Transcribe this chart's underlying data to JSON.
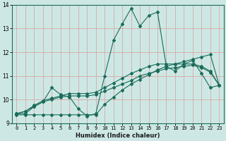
{
  "title": "",
  "xlabel": "Humidex (Indice chaleur)",
  "ylabel": "",
  "xlim": [
    -0.5,
    23.5
  ],
  "ylim": [
    9,
    14
  ],
  "yticks": [
    9,
    10,
    11,
    12,
    13,
    14
  ],
  "xticks": [
    0,
    1,
    2,
    3,
    4,
    5,
    6,
    7,
    8,
    9,
    10,
    11,
    12,
    13,
    14,
    15,
    16,
    17,
    18,
    19,
    20,
    21,
    22,
    23
  ],
  "background_color": "#cde8e4",
  "grid_color": "#d8a8a8",
  "line_color": "#1a6b5a",
  "figsize": [
    3.2,
    2.0
  ],
  "dpi": 100,
  "series": {
    "line1": [
      9.4,
      9.4,
      9.7,
      9.9,
      10.5,
      10.2,
      10.1,
      9.6,
      9.3,
      9.4,
      11.0,
      12.5,
      13.2,
      13.85,
      13.1,
      13.55,
      13.7,
      11.4,
      11.2,
      11.5,
      11.65,
      11.1,
      10.5,
      10.6
    ],
    "line2": [
      9.35,
      9.35,
      9.35,
      9.35,
      9.35,
      9.35,
      9.35,
      9.35,
      9.35,
      9.35,
      9.8,
      10.1,
      10.4,
      10.65,
      10.85,
      11.05,
      11.25,
      11.4,
      11.5,
      11.6,
      11.7,
      11.8,
      11.9,
      10.6
    ],
    "line3": [
      9.4,
      9.5,
      9.7,
      9.9,
      10.0,
      10.1,
      10.15,
      10.15,
      10.15,
      10.2,
      10.35,
      10.5,
      10.65,
      10.8,
      11.0,
      11.1,
      11.2,
      11.3,
      11.35,
      11.4,
      11.45,
      11.35,
      11.15,
      10.6
    ],
    "line4": [
      9.4,
      9.5,
      9.75,
      9.95,
      10.05,
      10.15,
      10.25,
      10.25,
      10.25,
      10.3,
      10.5,
      10.7,
      10.9,
      11.1,
      11.25,
      11.4,
      11.5,
      11.5,
      11.5,
      11.5,
      11.5,
      11.4,
      11.2,
      10.6
    ]
  }
}
